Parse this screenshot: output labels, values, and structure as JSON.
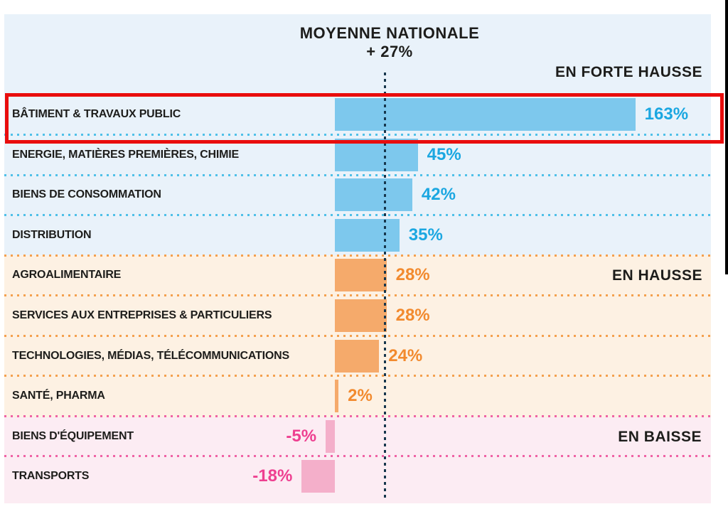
{
  "header": {
    "title_line1": "MOYENNE NATIONALE",
    "title_line2": "+ 27%"
  },
  "chart_data": {
    "type": "bar",
    "orientation": "horizontal",
    "unit": "%",
    "reference_line": {
      "label": "MOYENNE NATIONALE",
      "value": 27,
      "display": "+ 27%"
    },
    "categories": [
      "BÂTIMENT & TRAVAUX PUBLIC",
      "ENERGIE, MATIÈRES PREMIÈRES, CHIMIE",
      "BIENS DE CONSOMMATION",
      "DISTRIBUTION",
      "AGROALIMENTAIRE",
      "SERVICES AUX  ENTREPRISES & PARTICULIERS",
      "TECHNOLOGIES, MÉDIAS, TÉLÉCOMMUNICATIONS",
      "SANTÉ, PHARMA",
      "BIENS D'ÉQUIPEMENT",
      "TRANSPORTS"
    ],
    "values": [
      163,
      45,
      42,
      35,
      28,
      28,
      24,
      2,
      -5,
      -18
    ],
    "rows": [
      {
        "label": "BÂTIMENT & TRAVAUX PUBLIC",
        "value": 163,
        "display": "163%",
        "zone": "strong",
        "highlighted": true
      },
      {
        "label": "ENERGIE, MATIÈRES PREMIÈRES, CHIMIE",
        "value": 45,
        "display": "45%",
        "zone": "strong",
        "highlighted": false
      },
      {
        "label": "BIENS DE CONSOMMATION",
        "value": 42,
        "display": "42%",
        "zone": "strong",
        "highlighted": false
      },
      {
        "label": "DISTRIBUTION",
        "value": 35,
        "display": "35%",
        "zone": "strong",
        "highlighted": false
      },
      {
        "label": "AGROALIMENTAIRE",
        "value": 28,
        "display": "28%",
        "zone": "rise",
        "highlighted": false
      },
      {
        "label": "SERVICES AUX  ENTREPRISES & PARTICULIERS",
        "value": 28,
        "display": "28%",
        "zone": "rise",
        "highlighted": false
      },
      {
        "label": "TECHNOLOGIES, MÉDIAS, TÉLÉCOMMUNICATIONS",
        "value": 24,
        "display": "24%",
        "zone": "rise",
        "highlighted": false
      },
      {
        "label": "SANTÉ, PHARMA",
        "value": 2,
        "display": "2%",
        "zone": "rise",
        "highlighted": false
      },
      {
        "label": "BIENS D'ÉQUIPEMENT",
        "value": -5,
        "display": "-5%",
        "zone": "fall",
        "highlighted": false
      },
      {
        "label": "TRANSPORTS",
        "value": -18,
        "display": "-18%",
        "zone": "fall",
        "highlighted": false
      }
    ],
    "zones": {
      "strong": {
        "label": "EN FORTE HAUSSE",
        "bar_color": "#7dc8ed",
        "value_color": "#1ba7e1",
        "bg_color": "#e9f2fa",
        "dot_color": "#4fc0e8"
      },
      "rise": {
        "label": "EN HAUSSE",
        "bar_color": "#f5aa6b",
        "value_color": "#f28a2e",
        "bg_color": "#fdf1e3",
        "dot_color": "#f4a04e"
      },
      "fall": {
        "label": "EN BAISSE",
        "bar_color": "#f4afca",
        "value_color": "#ee3f90",
        "bg_color": "#fcecf3",
        "dot_color": "#ef63a5"
      }
    },
    "colors": {
      "reference_line": "#17374d",
      "highlight_border": "#e90d0d",
      "text": "#1d1d1b",
      "page_edge": "#000000"
    }
  }
}
